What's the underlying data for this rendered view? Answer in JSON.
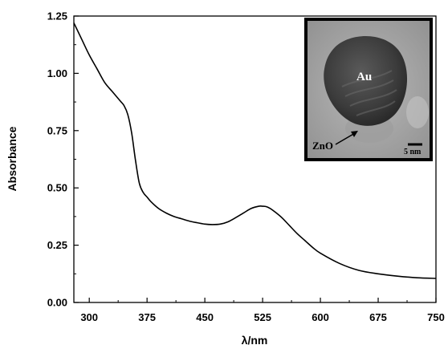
{
  "chart_data": {
    "type": "line",
    "xlabel": "λ/nm",
    "ylabel": "Absorbance",
    "xlim": [
      280,
      750
    ],
    "ylim": [
      0.0,
      1.25
    ],
    "xticks": [
      300,
      375,
      450,
      525,
      600,
      675,
      750
    ],
    "xtick_labels": [
      "300",
      "375",
      "450",
      "525",
      "600",
      "675",
      "750"
    ],
    "yticks": [
      0.0,
      0.25,
      0.5,
      0.75,
      1.0,
      1.25
    ],
    "ytick_labels": [
      "0.00",
      "0.25",
      "0.50",
      "0.75",
      "1.00",
      "1.25"
    ],
    "grid": false,
    "line_color": "#000000",
    "series": [
      {
        "x": [
          280,
          290,
          300,
          310,
          320,
          330,
          340,
          345,
          350,
          355,
          360,
          365,
          370,
          375,
          380,
          390,
          400,
          410,
          420,
          430,
          440,
          450,
          460,
          470,
          480,
          490,
          500,
          510,
          520,
          525,
          530,
          535,
          540,
          550,
          560,
          570,
          580,
          590,
          600,
          625,
          650,
          675,
          700,
          725,
          750
        ],
        "y": [
          1.22,
          1.15,
          1.08,
          1.02,
          0.96,
          0.92,
          0.88,
          0.86,
          0.82,
          0.74,
          0.62,
          0.52,
          0.48,
          0.46,
          0.44,
          0.41,
          0.39,
          0.375,
          0.365,
          0.355,
          0.348,
          0.342,
          0.34,
          0.342,
          0.352,
          0.37,
          0.39,
          0.41,
          0.42,
          0.42,
          0.418,
          0.41,
          0.398,
          0.37,
          0.335,
          0.3,
          0.27,
          0.24,
          0.215,
          0.17,
          0.14,
          0.125,
          0.115,
          0.108,
          0.105
        ]
      }
    ]
  },
  "inset": {
    "particle_label": "Au",
    "shell_label": "ZnO",
    "scale_bar_label": "5 nm"
  }
}
